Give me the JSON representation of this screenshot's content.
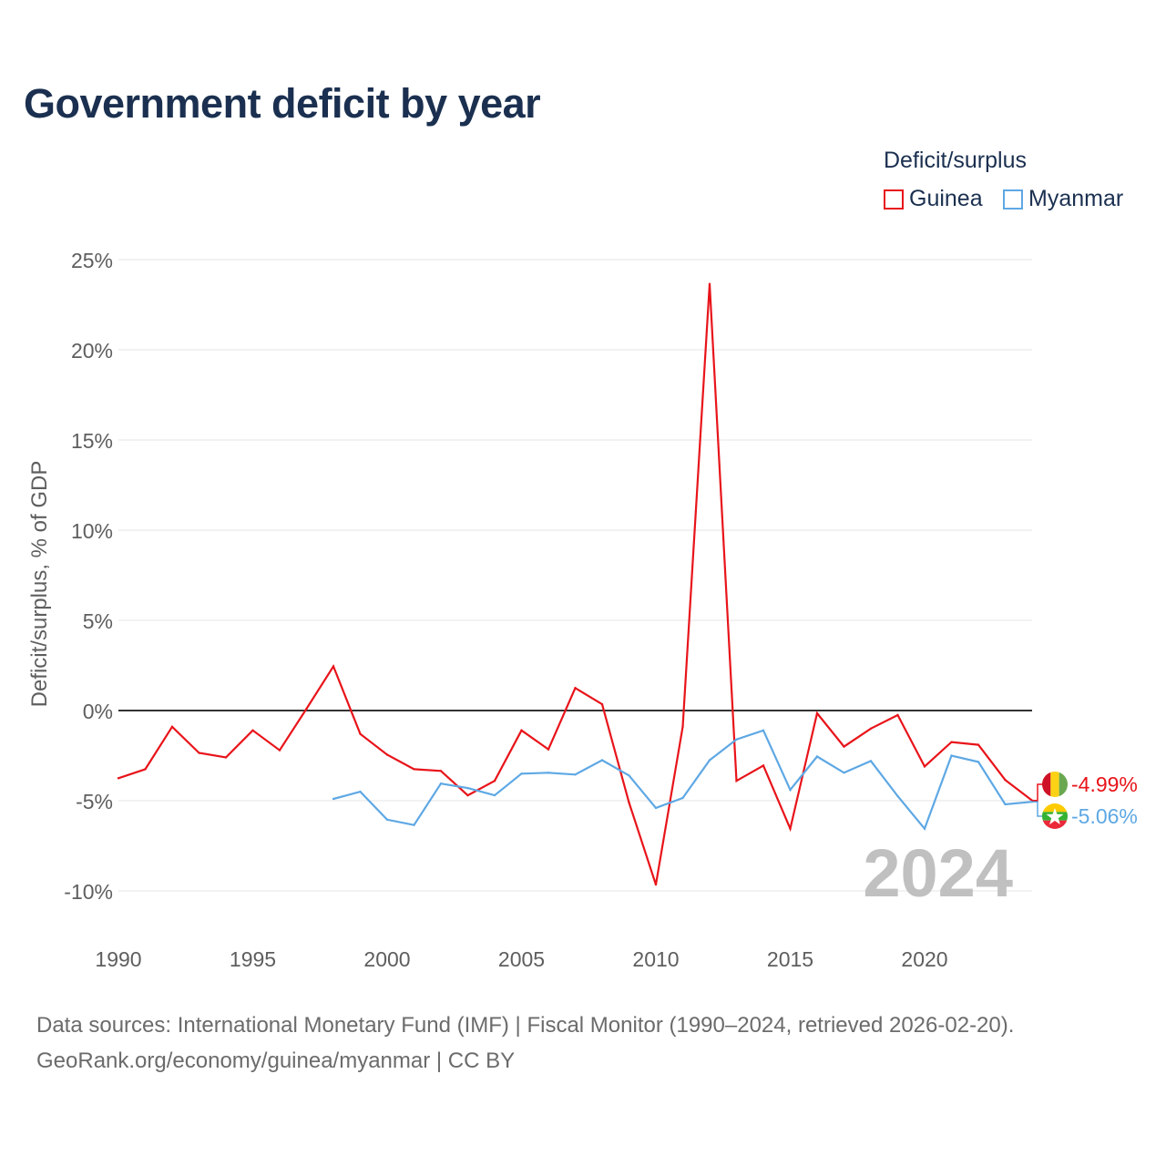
{
  "title": "Government deficit by year",
  "legend": {
    "title": "Deficit/surplus",
    "items": [
      {
        "name": "Guinea",
        "color": "#e8141a"
      },
      {
        "name": "Myanmar",
        "color": "#5ea8e4"
      }
    ]
  },
  "chart_data": {
    "type": "line",
    "title": "Government deficit by year",
    "xlabel": "",
    "ylabel": "Deficit/surplus, % of GDP",
    "xlim": [
      1990,
      2024
    ],
    "ylim": [
      -12,
      25
    ],
    "y_ticks": [
      25,
      20,
      15,
      10,
      5,
      0,
      -5,
      -10
    ],
    "y_tick_labels": [
      "25%",
      "20%",
      "15%",
      "10%",
      "5%",
      "0%",
      "-5%",
      "-10%"
    ],
    "x_ticks": [
      1990,
      1995,
      2000,
      2005,
      2010,
      2015,
      2020
    ],
    "x_tick_labels": [
      "1990",
      "1995",
      "2000",
      "2005",
      "2010",
      "2015",
      "2020"
    ],
    "grid": true,
    "zero_line": true,
    "year_watermark": "2024",
    "series": [
      {
        "name": "Guinea",
        "color": "#e8141a",
        "end_label": "-4.99%",
        "x": [
          1990,
          1991,
          1992,
          1993,
          1994,
          1995,
          1996,
          1997,
          1998,
          1999,
          2000,
          2001,
          2002,
          2003,
          2004,
          2005,
          2006,
          2007,
          2008,
          2009,
          2010,
          2011,
          2012,
          2013,
          2014,
          2015,
          2016,
          2017,
          2018,
          2019,
          2020,
          2021,
          2022,
          2023,
          2024
        ],
        "values": [
          -3.75,
          -3.25,
          -0.9,
          -2.35,
          -2.6,
          -1.1,
          -2.2,
          0.1,
          2.45,
          -1.3,
          -2.45,
          -3.25,
          -3.35,
          -4.7,
          -3.9,
          -1.1,
          -2.15,
          1.25,
          0.35,
          -5.1,
          -9.65,
          -0.9,
          23.65,
          -3.9,
          -3.05,
          -6.55,
          -0.15,
          -2.0,
          -1.0,
          -0.25,
          -3.1,
          -1.75,
          -1.9,
          -3.85,
          -4.99
        ]
      },
      {
        "name": "Myanmar",
        "color": "#5ea8e4",
        "end_label": "-5.06%",
        "x": [
          1998,
          1999,
          2000,
          2001,
          2002,
          2003,
          2004,
          2005,
          2006,
          2007,
          2008,
          2009,
          2010,
          2011,
          2012,
          2013,
          2014,
          2015,
          2016,
          2017,
          2018,
          2019,
          2020,
          2021,
          2022,
          2023,
          2024
        ],
        "values": [
          -4.9,
          -4.5,
          -6.05,
          -6.35,
          -4.05,
          -4.3,
          -4.7,
          -3.5,
          -3.45,
          -3.55,
          -2.75,
          -3.6,
          -5.4,
          -4.85,
          -2.75,
          -1.6,
          -1.1,
          -4.4,
          -2.55,
          -3.45,
          -2.8,
          -4.75,
          -6.55,
          -2.5,
          -2.85,
          -5.2,
          -5.06
        ]
      }
    ]
  },
  "sources": {
    "line1": "Data sources: International Monetary Fund (IMF) | Fiscal Monitor (1990–2024, retrieved 2026-02-20).",
    "line2": "GeoRank.org/economy/guinea/myanmar | CC BY"
  }
}
